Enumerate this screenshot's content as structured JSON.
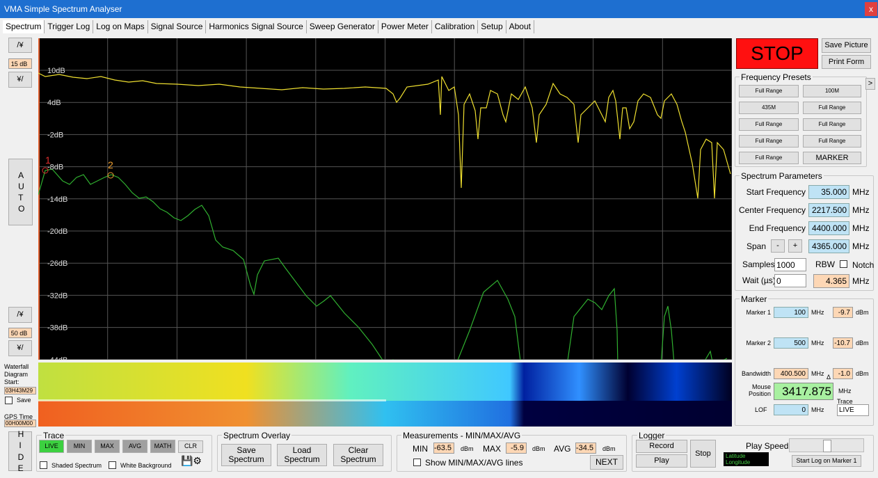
{
  "window": {
    "title": "VMA Simple Spectrum Analyser",
    "close": "x"
  },
  "tabs": [
    "Spectrum",
    "Trigger Log",
    "Log on Maps",
    "Signal Source",
    "Harmonics Signal Source",
    "Sweep Generator",
    "Power Meter",
    "Calibration",
    "Setup",
    "About"
  ],
  "left": {
    "up1": "/¥",
    "db1": "15 dB",
    "down1": "¥/",
    "auto": "AUTO",
    "up2": "/¥",
    "db2": "50 dB",
    "down2": "¥/",
    "waterfall_label": "Waterfall Diagram Start:",
    "waterfall_start": "03H43M29",
    "save": "Save",
    "gps_label": "GPS Time",
    "gps_time": "00H00M00",
    "hide": "HIDE"
  },
  "plot": {
    "y_labels": [
      "10dB",
      "4dB",
      "-2dB",
      "-8dB",
      "-14dB",
      "-20dB",
      "-26dB",
      "-32dB",
      "-38dB",
      "-44dB"
    ],
    "markers": [
      "1",
      "2"
    ]
  },
  "controls": {
    "stop": "STOP",
    "save_picture": "Save Picture",
    "print_form": "Print Form"
  },
  "presets": {
    "title": "Frequency Presets",
    "more": ">",
    "buttons": [
      "Full Range",
      "100M",
      "435M",
      "Full Range",
      "Full Range",
      "Full Range",
      "Full Range",
      "Full Range",
      "Full Range",
      "MARKER"
    ]
  },
  "spectrum_parameters": {
    "title": "Spectrum Parameters",
    "start_label": "Start Frequency",
    "start": "35.000",
    "center_label": "Center Frequency",
    "center": "2217.500",
    "end_label": "End Frequency",
    "end": "4400.000",
    "span_label": "Span",
    "minus": "-",
    "plus": "+",
    "span": "4365.000",
    "unit": "MHz",
    "samples_label": "Samples",
    "samples": "1000",
    "rbw_label": "RBW",
    "notch_label": "Notch",
    "wait_label": "Wait (µs)",
    "wait": "0",
    "rbw": "4.365"
  },
  "marker": {
    "title": "Marker",
    "m1_label": "Marker 1",
    "m1_freq": "100",
    "m1_level": "-9.7",
    "m2_label": "Marker 2",
    "m2_freq": "500",
    "m2_level": "-10.7",
    "bw_label": "Bandwidth",
    "bw": "400.500",
    "delta": "Δ",
    "bw_level": "-1.0",
    "mouse_label": "Mouse Position",
    "mouse": "3417.875",
    "trace_label": "Trace",
    "trace": "LIVE",
    "lof_label": "LOF",
    "lof": "0",
    "mhz": "MHz",
    "dbm": "dBm"
  },
  "trace": {
    "title": "Trace",
    "buttons": [
      "LIVE",
      "MIN",
      "MAX",
      "AVG",
      "MATH"
    ],
    "clr": "CLR",
    "shaded": "Shaded Spectrum",
    "white": "White Background"
  },
  "overlay": {
    "title": "Spectrum Overlay",
    "save": "Save Spectrum",
    "load": "Load Spectrum",
    "clear": "Clear Spectrum"
  },
  "measurements": {
    "title": "Measurements - MIN/MAX/AVG",
    "min_label": "MIN",
    "min": "-63.5",
    "max_label": "MAX",
    "max": "-5.9",
    "avg_label": "AVG",
    "avg": "-34.5",
    "unit": "dBm",
    "show_lines": "Show MIN/MAX/AVG lines",
    "next": "NEXT"
  },
  "logger": {
    "title": "Logger",
    "record": "Record",
    "play": "Play",
    "stop": "Stop",
    "play_speed": "Play Speed",
    "start_log": "Start Log on Marker 1",
    "latitude": "Latitude",
    "longitude": "Longitude"
  }
}
